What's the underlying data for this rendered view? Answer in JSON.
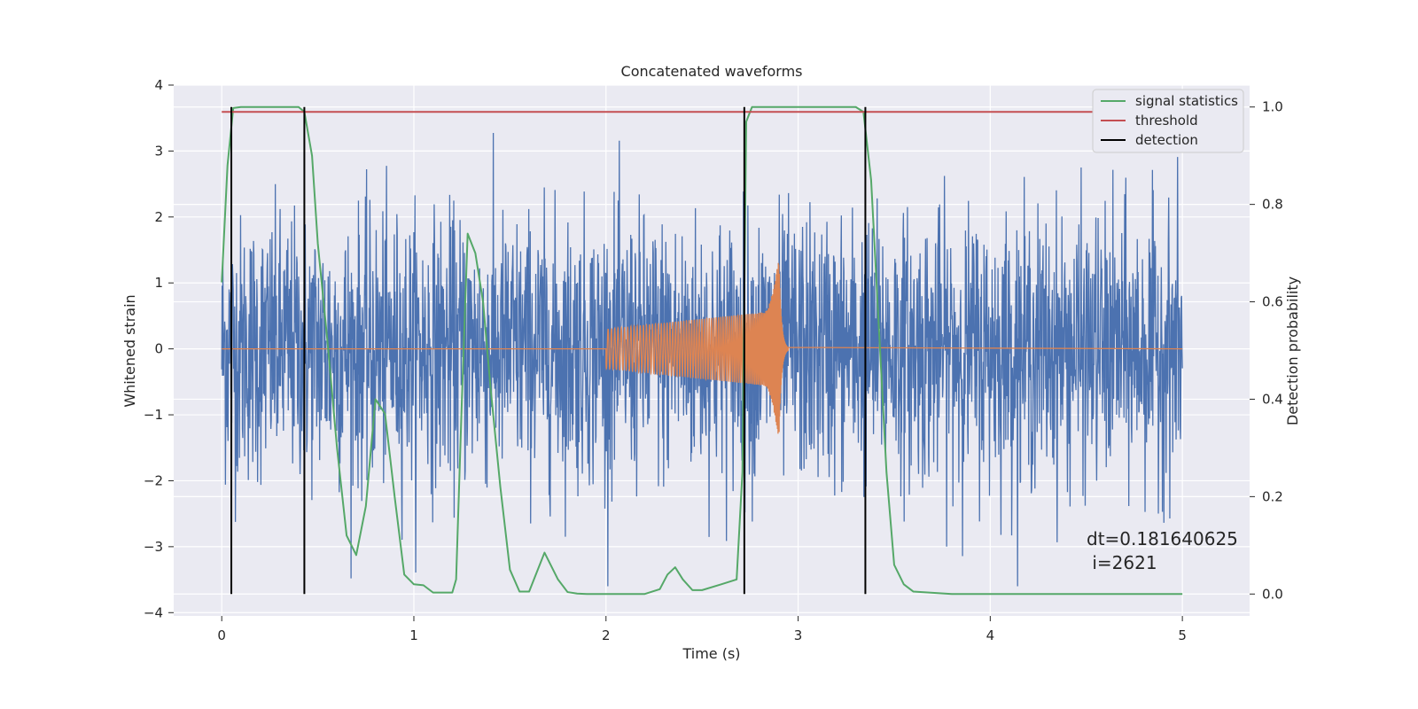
{
  "chart_data": {
    "type": "line",
    "title": "Concatenated waveforms",
    "xlabel": "Time (s)",
    "ylabel_left": "Whitened strain",
    "ylabel_right": "Detection probability",
    "xlim": [
      -0.25,
      5.35
    ],
    "ylim_left": [
      -4.05,
      4.0
    ],
    "ylim_right": [
      -0.045,
      1.045
    ],
    "x_ticks": [
      0,
      1,
      2,
      3,
      4,
      5
    ],
    "x_tick_labels": [
      "0",
      "1",
      "2",
      "3",
      "4",
      "5"
    ],
    "y_left_ticks": [
      -4,
      -3,
      -2,
      -1,
      0,
      1,
      2,
      3,
      4
    ],
    "y_left_tick_labels": [
      "−4",
      "−3",
      "−2",
      "−1",
      "0",
      "1",
      "2",
      "3",
      "4"
    ],
    "y_right_ticks": [
      0.0,
      0.2,
      0.4,
      0.6,
      0.8,
      1.0
    ],
    "y_right_tick_labels": [
      "0.0",
      "0.2",
      "0.4",
      "0.6",
      "0.8",
      "1.0"
    ],
    "grid": true,
    "legend_position": "top-right",
    "legend": [
      {
        "label": "signal statistics",
        "color": "#55a868"
      },
      {
        "label": "threshold",
        "color": "#c44e52"
      },
      {
        "label": "detection",
        "color": "#000000"
      }
    ],
    "series": [
      {
        "role": "whitened-strain-noise",
        "axis": "left",
        "color": "#4c72b0",
        "x_range": [
          0,
          5
        ],
        "typical_amplitude": 1.0,
        "peak_amplitude": 3.6
      },
      {
        "role": "injected-chirp",
        "axis": "left",
        "color": "#dd8452",
        "x_range": [
          2.0,
          2.95
        ],
        "start_amplitude": 0.3,
        "end_amplitude": 0.58,
        "merger_time": 2.9,
        "merger_amplitude": 1.4
      },
      {
        "name": "signal statistics",
        "axis": "right",
        "color": "#55a868",
        "x": [
          0.0,
          0.03,
          0.06,
          0.1,
          0.2,
          0.3,
          0.4,
          0.43,
          0.47,
          0.5,
          0.55,
          0.6,
          0.65,
          0.7,
          0.75,
          0.8,
          0.85,
          0.9,
          0.95,
          1.0,
          1.05,
          1.1,
          1.2,
          1.22,
          1.25,
          1.28,
          1.32,
          1.36,
          1.4,
          1.45,
          1.5,
          1.55,
          1.6,
          1.68,
          1.75,
          1.8,
          1.85,
          1.9,
          2.0,
          2.1,
          2.2,
          2.28,
          2.32,
          2.36,
          2.4,
          2.45,
          2.5,
          2.6,
          2.68,
          2.71,
          2.73,
          2.76,
          2.8,
          2.9,
          3.0,
          3.1,
          3.2,
          3.3,
          3.34,
          3.38,
          3.42,
          3.46,
          3.5,
          3.55,
          3.6,
          3.8,
          4.0,
          4.5,
          5.0
        ],
        "y": [
          0.64,
          0.88,
          0.998,
          1.0,
          1.0,
          1.0,
          1.0,
          0.99,
          0.9,
          0.72,
          0.52,
          0.3,
          0.12,
          0.08,
          0.18,
          0.4,
          0.37,
          0.2,
          0.04,
          0.02,
          0.018,
          0.003,
          0.003,
          0.03,
          0.4,
          0.74,
          0.7,
          0.6,
          0.42,
          0.22,
          0.05,
          0.005,
          0.005,
          0.085,
          0.03,
          0.004,
          0.001,
          0.0,
          0.0,
          0.0,
          0.0,
          0.01,
          0.04,
          0.055,
          0.03,
          0.008,
          0.008,
          0.02,
          0.03,
          0.25,
          0.97,
          1.0,
          1.0,
          1.0,
          1.0,
          1.0,
          1.0,
          1.0,
          0.99,
          0.85,
          0.55,
          0.25,
          0.06,
          0.02,
          0.005,
          0.0,
          0.0,
          0.0,
          0.0
        ]
      },
      {
        "name": "threshold",
        "axis": "right",
        "color": "#c44e52",
        "x": [
          0,
          5
        ],
        "y": [
          0.99,
          0.99
        ]
      }
    ],
    "detections": [
      0.05,
      0.43,
      2.72,
      3.35
    ],
    "detection_range": [
      0.0,
      1.0
    ],
    "annotation": {
      "line1": "dt=0.181640625",
      "line2": " i=2621",
      "x": 4.5,
      "y": -3.0
    }
  }
}
